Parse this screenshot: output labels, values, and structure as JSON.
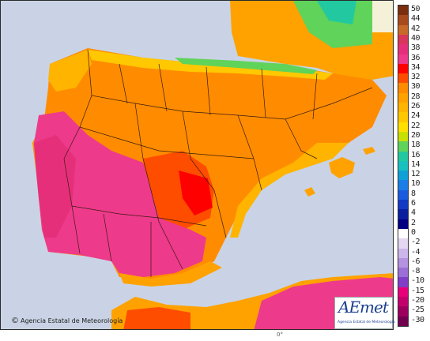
{
  "map": {
    "copyright": "Agencia Estatal de Meteorología",
    "bottom_tick": "0°",
    "logo_text": "AEmet",
    "logo_sub": "Agencia Estatal de Meteorología"
  },
  "legend": {
    "ticks": [
      "50",
      "44",
      "42",
      "40",
      "38",
      "36",
      "34",
      "32",
      "30",
      "28",
      "26",
      "24",
      "22",
      "20",
      "18",
      "16",
      "14",
      "12",
      "10",
      "8",
      "6",
      "4",
      "2",
      "0",
      "-2",
      "-4",
      "-6",
      "-8",
      "-10",
      "-15",
      "-20",
      "-25",
      "-30"
    ],
    "colors": [
      "#7a2e0e",
      "#a84b1c",
      "#c76a28",
      "#d8365a",
      "#e62f7a",
      "#ee3a8b",
      "#ff0000",
      "#ff4d00",
      "#ff8c00",
      "#ffa200",
      "#ffb400",
      "#ffc800",
      "#ffe000",
      "#c8e000",
      "#5fd35a",
      "#22c9a0",
      "#18c0c0",
      "#10a0d8",
      "#1a7ee6",
      "#1a5ce0",
      "#1439c4",
      "#0a1e9e",
      "#000080",
      "#ffffff",
      "#e5d6f2",
      "#cdb6ea",
      "#b593e0",
      "#9c6fd6",
      "#7f3fc7",
      "#e8007a",
      "#c4006d",
      "#9c005e",
      "#720050"
    ]
  }
}
